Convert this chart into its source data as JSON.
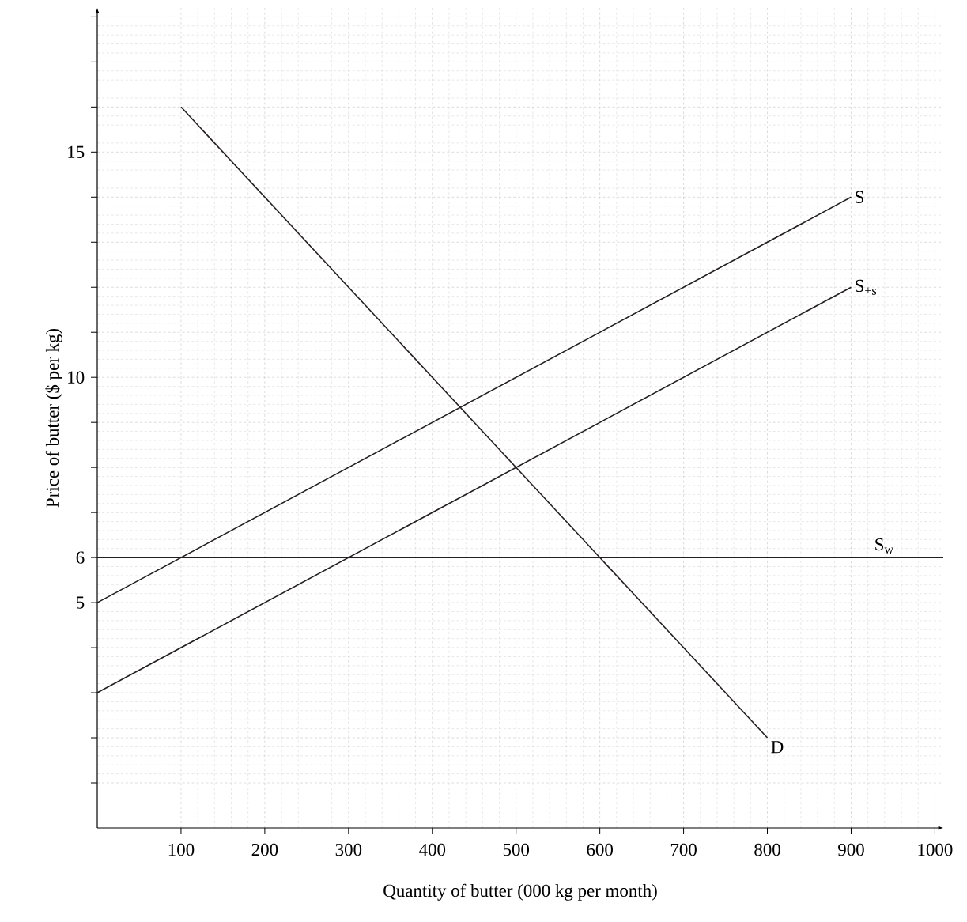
{
  "chart_data": {
    "type": "line",
    "xlabel": "Quantity of butter (000 kg per month)",
    "ylabel": "Price of butter ($ per kg)",
    "xlim": [
      0,
      1010
    ],
    "ylim": [
      0,
      18.2
    ],
    "xticks": [
      100,
      200,
      300,
      400,
      500,
      600,
      700,
      800,
      900,
      1000
    ],
    "yticks": [
      {
        "value": 1,
        "label": null
      },
      {
        "value": 2,
        "label": null
      },
      {
        "value": 3,
        "label": null
      },
      {
        "value": 4,
        "label": null
      },
      5,
      6,
      {
        "value": 7,
        "label": null
      },
      {
        "value": 8,
        "label": null
      },
      {
        "value": 9,
        "label": null
      },
      10,
      {
        "value": 11,
        "label": null
      },
      {
        "value": 12,
        "label": null
      },
      {
        "value": 13,
        "label": null
      },
      {
        "value": 14,
        "label": null
      },
      15,
      {
        "value": 16,
        "label": null
      },
      {
        "value": 17,
        "label": null
      },
      {
        "value": 18,
        "label": null
      }
    ],
    "grid": true,
    "marker": "none",
    "line_style": "solid",
    "series": [
      {
        "name": "D",
        "color": "#231f20",
        "x": [
          100,
          800
        ],
        "values": [
          16,
          2
        ]
      },
      {
        "name": "S",
        "color": "#231f20",
        "x": [
          0,
          900
        ],
        "values": [
          5,
          14
        ]
      },
      {
        "name": "S$_{+s}$",
        "color": "#231f20",
        "x": [
          0,
          900
        ],
        "values": [
          3,
          12
        ]
      }
    ],
    "ref_lines": [
      {
        "axis": "y",
        "value": 6,
        "label": "S$_{w}$",
        "color": "#231f20"
      }
    ]
  }
}
